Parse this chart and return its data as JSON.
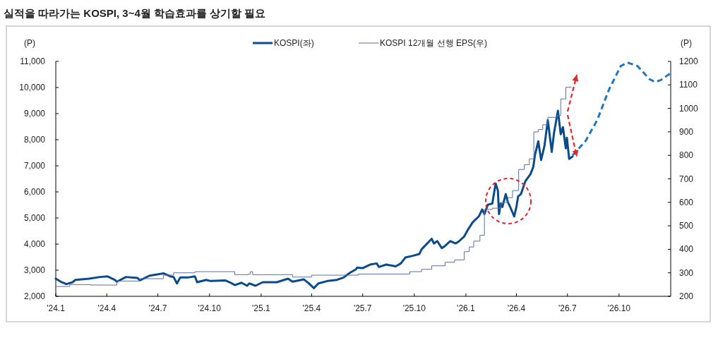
{
  "chart_data": {
    "type": "line",
    "title": "실적을 따라가는 KOSPI, 3~4월 학습효과를 상기할 필요",
    "ylabel": "(P)",
    "y2label": "(P)",
    "xlim": [
      "2024-01-01",
      "2027-01-01"
    ],
    "xticks": [
      {
        "value": "2024-01-01",
        "label": "'24.1"
      },
      {
        "value": "2024-04-01",
        "label": "'24.4"
      },
      {
        "value": "2024-07-01",
        "label": "'24.7"
      },
      {
        "value": "2024-10-01",
        "label": "'24.10"
      },
      {
        "value": "2025-01-01",
        "label": "'25.1"
      },
      {
        "value": "2025-04-01",
        "label": "'25.4"
      },
      {
        "value": "2025-07-01",
        "label": "'25.7"
      },
      {
        "value": "2025-10-01",
        "label": "'25.10"
      },
      {
        "value": "2026-01-01",
        "label": "'26.1"
      },
      {
        "value": "2026-04-01",
        "label": "'26.4"
      },
      {
        "value": "2026-07-01",
        "label": "'26.7"
      },
      {
        "value": "2026-10-01",
        "label": "'26.10"
      }
    ],
    "ylim": [
      2000,
      11000
    ],
    "yticks": [
      {
        "value": 2000,
        "label": "2,000"
      },
      {
        "value": 3000,
        "label": "3,000"
      },
      {
        "value": 4000,
        "label": "4,000"
      },
      {
        "value": 5000,
        "label": "5,000"
      },
      {
        "value": 6000,
        "label": "6,000"
      },
      {
        "value": 7000,
        "label": "7,000"
      },
      {
        "value": 8000,
        "label": "8,000"
      },
      {
        "value": 9000,
        "label": "9,000"
      },
      {
        "value": 10000,
        "label": "10,000"
      },
      {
        "value": 11000,
        "label": "11,000"
      }
    ],
    "y2lim": [
      200,
      1200
    ],
    "y2ticks": [
      200,
      300,
      400,
      500,
      600,
      700,
      800,
      900,
      1000,
      1100,
      1200
    ],
    "grid": false,
    "legend": "top",
    "series": [
      {
        "name": "KOSPI(좌)",
        "color": "#0b4a8b",
        "x": [
          "2024-01-01",
          "2024-01-10",
          "2024-01-20",
          "2024-01-31",
          "2024-02-05",
          "2024-02-29",
          "2024-03-20",
          "2024-04-02",
          "2024-04-15",
          "2024-04-19",
          "2024-05-05",
          "2024-05-26",
          "2024-05-30",
          "2024-06-16",
          "2024-07-11",
          "2024-07-23",
          "2024-07-29",
          "2024-08-04",
          "2024-08-10",
          "2024-08-23",
          "2024-09-05",
          "2024-09-09",
          "2024-09-25",
          "2024-10-03",
          "2024-10-29",
          "2024-11-10",
          "2024-11-15",
          "2024-11-27",
          "2024-12-07",
          "2024-12-11",
          "2024-12-22",
          "2025-01-04",
          "2025-01-29",
          "2025-02-18",
          "2025-02-26",
          "2025-03-18",
          "2025-03-27",
          "2025-04-05",
          "2025-04-13",
          "2025-04-29",
          "2025-05-16",
          "2025-05-28",
          "2025-06-08",
          "2025-06-19",
          "2025-06-21",
          "2025-07-01",
          "2025-07-14",
          "2025-07-26",
          "2025-07-30",
          "2025-08-12",
          "2025-08-29",
          "2025-09-07",
          "2025-09-15",
          "2025-09-28",
          "2025-10-10",
          "2025-10-14",
          "2025-11-01",
          "2025-11-05",
          "2025-11-11",
          "2025-11-19",
          "2025-11-25",
          "2025-12-04",
          "2025-12-14",
          "2025-12-20",
          "2025-12-29",
          "2026-01-05",
          "2026-01-13",
          "2026-01-24",
          "2026-01-30",
          "2026-02-03",
          "2026-02-09",
          "2026-02-17",
          "2026-02-23",
          "2026-02-27",
          "2026-03-01",
          "2026-03-04",
          "2026-03-07",
          "2026-03-13",
          "2026-03-17",
          "2026-03-21",
          "2026-03-28",
          "2026-04-01",
          "2026-04-04",
          "2026-04-09",
          "2026-04-17",
          "2026-04-26",
          "2026-05-01",
          "2026-05-04",
          "2026-05-10",
          "2026-05-15",
          "2026-05-21",
          "2026-05-27",
          "2026-06-03",
          "2026-06-07",
          "2026-06-14",
          "2026-06-19",
          "2026-06-23",
          "2026-06-28",
          "2026-06-30",
          "2026-07-04",
          "2026-07-10"
        ],
        "values": [
          2675,
          2560,
          2470,
          2540,
          2630,
          2675,
          2740,
          2765,
          2630,
          2560,
          2740,
          2700,
          2610,
          2790,
          2880,
          2765,
          2740,
          2495,
          2720,
          2720,
          2765,
          2540,
          2630,
          2585,
          2610,
          2495,
          2430,
          2520,
          2405,
          2495,
          2405,
          2540,
          2540,
          2675,
          2560,
          2650,
          2495,
          2315,
          2495,
          2585,
          2630,
          2720,
          2900,
          3035,
          3100,
          3080,
          3215,
          3260,
          3125,
          3215,
          3150,
          3260,
          3485,
          3550,
          3620,
          3800,
          4205,
          4025,
          4115,
          3845,
          3935,
          4115,
          4025,
          4115,
          4295,
          4565,
          4835,
          5060,
          5330,
          5150,
          5510,
          5555,
          6320,
          6050,
          5150,
          5555,
          5420,
          5915,
          5600,
          5420,
          5060,
          5420,
          5825,
          5915,
          6410,
          6680,
          6950,
          7400,
          7940,
          7220,
          7760,
          8750,
          7535,
          8255,
          9110,
          8210,
          8480,
          7670,
          8075,
          7265,
          7355
        ]
      },
      {
        "name": "KOSPI 12개월 선행 EPS(우)",
        "color": "#5b6fa8",
        "type": "step",
        "axis": "y2",
        "x": [
          "2024-01-01",
          "2024-01-26",
          "2024-03-03",
          "2024-04-19",
          "2024-05-30",
          "2024-07-11",
          "2024-07-29",
          "2024-09-05",
          "2024-11-15",
          "2024-12-09",
          "2024-12-13",
          "2024-12-17",
          "2025-02-26",
          "2025-04-01",
          "2025-06-23",
          "2025-09-23",
          "2025-10-14",
          "2025-11-01",
          "2025-11-25",
          "2025-12-12",
          "2025-12-29",
          "2026-01-07",
          "2026-01-15",
          "2026-01-26",
          "2026-02-03",
          "2026-02-17",
          "2026-03-04",
          "2026-03-17",
          "2026-03-25",
          "2026-04-05",
          "2026-04-15",
          "2026-04-24",
          "2026-05-02",
          "2026-05-10",
          "2026-05-18",
          "2026-05-27",
          "2026-06-13",
          "2026-06-19",
          "2026-06-28",
          "2026-07-08"
        ],
        "values": [
          242,
          250,
          248,
          265,
          275,
          290,
          300,
          305,
          292,
          295,
          305,
          292,
          282,
          290,
          295,
          305,
          315,
          330,
          345,
          355,
          390,
          410,
          435,
          460,
          570,
          575,
          600,
          620,
          650,
          740,
          760,
          785,
          900,
          910,
          930,
          962,
          970,
          1040,
          1090,
          1090
        ]
      },
      {
        "color": "#1f77c0",
        "line_style": "dashed",
        "x": [
          "2026-07-10",
          "2026-08-02",
          "2026-08-23",
          "2026-09-13",
          "2026-10-04",
          "2026-10-16",
          "2026-11-03",
          "2026-11-24",
          "2026-12-04",
          "2026-12-14",
          "2027-01-01"
        ],
        "values": [
          7400,
          7940,
          8750,
          9920,
          10820,
          10955,
          10820,
          10325,
          10210,
          10280,
          10550
        ]
      }
    ]
  }
}
